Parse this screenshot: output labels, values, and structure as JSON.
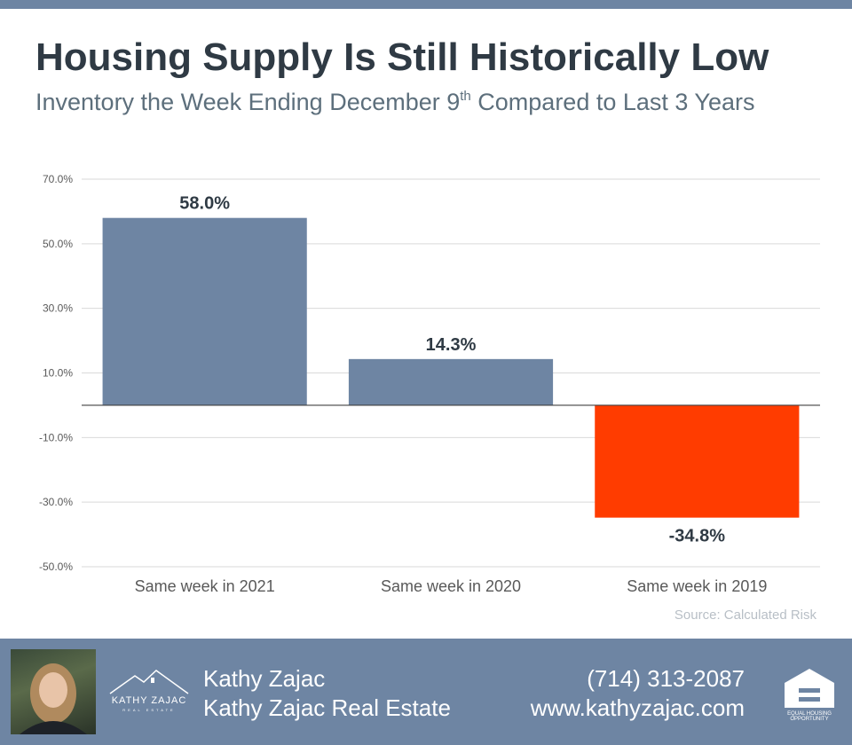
{
  "title": "Housing Supply Is Still Historically Low",
  "subtitle": {
    "before": "Inventory the Week Ending December 9",
    "superscript": "th",
    "after": " Compared to Last 3 Years"
  },
  "chart_data": {
    "type": "bar",
    "categories": [
      "Same week in 2021",
      "Same week in 2020",
      "Same week in 2019"
    ],
    "values": [
      58.0,
      14.3,
      -34.8
    ],
    "data_labels": [
      "58.0%",
      "14.3%",
      "-34.8%"
    ],
    "bar_colors": [
      "#6e85a3",
      "#6e85a3",
      "#ff3c00"
    ],
    "ylim": [
      -50,
      70
    ],
    "yticks": [
      70,
      50,
      30,
      10,
      -10,
      -30,
      -50
    ],
    "ytick_labels": [
      "70.0%",
      "50.0%",
      "30.0%",
      "10.0%",
      "-10.0%",
      "-30.0%",
      "-50.0%"
    ],
    "grid": true,
    "xlabel": "",
    "ylabel": "",
    "source": "Source: Calculated Risk"
  },
  "footer": {
    "agent_name": "Kathy Zajac",
    "company": "Kathy Zajac Real Estate",
    "phone": "(714) 313-2087",
    "website": "www.kathyzajac.com",
    "logo_name": "KATHY ZAJAC",
    "logo_sub": "REAL ESTATE",
    "eho_text": "EQUAL HOUSING OPPORTUNITY"
  },
  "colors": {
    "accent": "#6e85a3",
    "negative": "#ff3c00",
    "title": "#2f3a44",
    "subtitle": "#5d6f7c"
  }
}
